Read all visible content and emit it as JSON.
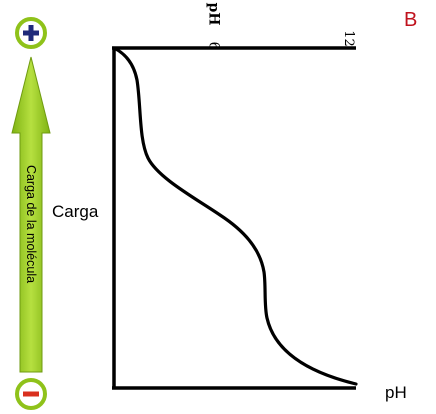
{
  "panel_letter": "B",
  "charge_arrow": {
    "label": "Carga de la molécula",
    "top_sign": "+",
    "bottom_sign": "−",
    "arrow_color": "#8fc21a",
    "top_sign_color": "#1f2a7a",
    "bottom_sign_color": "#d9301e",
    "circle_color": "#8fc21a"
  },
  "plot": {
    "y_label": "Carga",
    "x_label": "pH",
    "top_axis_title": "pH",
    "top_axis_ticks": [
      "6",
      "12"
    ]
  }
}
